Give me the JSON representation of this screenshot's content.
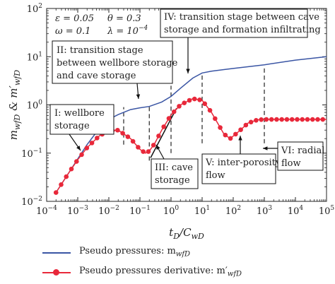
{
  "chart_data": {
    "type": "line",
    "xscale": "log",
    "yscale": "log",
    "xlim": [
      0.0001,
      100000
    ],
    "ylim": [
      0.01,
      100
    ],
    "xlabel": "t_D/C_wD",
    "ylabel": "m_wfD & m'_wfD",
    "x_tick_labels": [
      "10^-4",
      "10^-3",
      "10^-2",
      "10^-1",
      "10^0",
      "10^1",
      "10^2",
      "10^3",
      "10^4",
      "10^5"
    ],
    "y_tick_labels": [
      "10^-2",
      "10^-1",
      "10^0",
      "10^1",
      "10^2"
    ],
    "parameters": [
      "ε = 0.05",
      "θ = 0.3",
      "ω = 0.1",
      "λ = 10^-4"
    ],
    "series": [
      {
        "name": "Pseudo pressures: m_wfD",
        "color": "#3a55a4",
        "marker": "none",
        "points": [
          [
            0.0002,
            0.0152
          ],
          [
            0.0005,
            0.038
          ],
          [
            0.001,
            0.076
          ],
          [
            0.002,
            0.15
          ],
          [
            0.005,
            0.33
          ],
          [
            0.01,
            0.5
          ],
          [
            0.02,
            0.63
          ],
          [
            0.05,
            0.8
          ],
          [
            0.1,
            0.87
          ],
          [
            0.2,
            0.93
          ],
          [
            0.5,
            1.15
          ],
          [
            1,
            1.5
          ],
          [
            2,
            2.2
          ],
          [
            5,
            3.6
          ],
          [
            10,
            4.6
          ],
          [
            20,
            5.0
          ],
          [
            50,
            5.4
          ],
          [
            100,
            5.7
          ],
          [
            1000,
            6.8
          ],
          [
            10000,
            8.5
          ],
          [
            100000,
            10
          ]
        ]
      },
      {
        "name": "Pseudo pressures derivative: m'_wfD",
        "color": "#e8283a",
        "marker": "circle",
        "points": [
          [
            0.0002,
            0.0152
          ],
          [
            0.0005,
            0.038
          ],
          [
            0.001,
            0.073
          ],
          [
            0.002,
            0.13
          ],
          [
            0.005,
            0.23
          ],
          [
            0.01,
            0.29
          ],
          [
            0.02,
            0.3
          ],
          [
            0.05,
            0.2
          ],
          [
            0.1,
            0.12
          ],
          [
            0.15,
            0.1
          ],
          [
            0.2,
            0.11
          ],
          [
            0.3,
            0.16
          ],
          [
            0.5,
            0.3
          ],
          [
            1,
            0.62
          ],
          [
            2,
            1.0
          ],
          [
            5,
            1.35
          ],
          [
            10,
            1.25
          ],
          [
            20,
            0.7
          ],
          [
            50,
            0.25
          ],
          [
            80,
            0.2
          ],
          [
            150,
            0.28
          ],
          [
            300,
            0.42
          ],
          [
            600,
            0.49
          ],
          [
            1000,
            0.5
          ],
          [
            100000,
            0.5
          ]
        ]
      }
    ],
    "annotations": [
      {
        "label": "I: wellbore storage",
        "lines": [
          "I: wellbore",
          "storage"
        ]
      },
      {
        "label": "II: transition stage between wellbore storage and cave storage",
        "lines": [
          "II: transition stage",
          "between wellbore storage",
          "and cave storage"
        ]
      },
      {
        "label": "III: cave storage",
        "lines": [
          "III: cave",
          "storage"
        ]
      },
      {
        "label": "IV: transition stage between cave storage and formation infiltrating",
        "lines": [
          "IV: transition stage between cave",
          "storage and formation infiltrating"
        ]
      },
      {
        "label": "V: inter-porosity flow",
        "lines": [
          "V: inter-porosity",
          "flow"
        ]
      },
      {
        "label": "VI: radial flow",
        "lines": [
          "VI: radial",
          "flow"
        ]
      }
    ],
    "stage_boundaries_x": [
      0.03,
      0.2,
      1,
      10,
      1000
    ],
    "grid": false,
    "legend_position": "bottom"
  },
  "legend": {
    "items": [
      {
        "label": "Pseudo pressures: m",
        "sub": "wfD",
        "prime": false,
        "color": "#3a55a4",
        "marker": false
      },
      {
        "label": "Pseudo pressures derivative: m",
        "sub": "wfD",
        "prime": true,
        "color": "#e8283a",
        "marker": true
      }
    ]
  }
}
